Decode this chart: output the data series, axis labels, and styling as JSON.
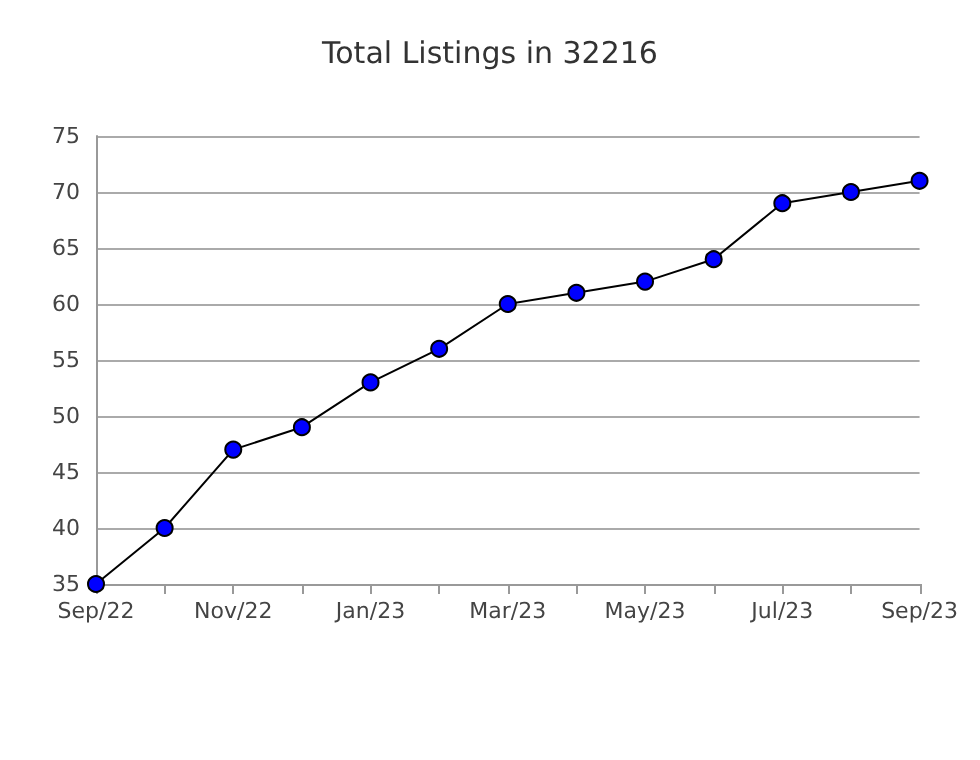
{
  "chart_data": {
    "type": "line",
    "title": "Total Listings in 32216",
    "categories": [
      "Sep/22",
      null,
      "Nov/22",
      null,
      "Jan/23",
      null,
      "Mar/23",
      null,
      "May/23",
      null,
      "Jul/23",
      null,
      "Sep/23"
    ],
    "series": [
      {
        "color": "#0000ff",
        "values": [
          35,
          40,
          47,
          49,
          53,
          56,
          60,
          61,
          62,
          64,
          69,
          70,
          71
        ]
      }
    ],
    "ylim": [
      35,
      75
    ],
    "yticks": [
      35,
      40,
      45,
      50,
      55,
      60,
      65,
      70,
      75
    ],
    "grid": "y",
    "marker": "circle",
    "line_style": "solid"
  }
}
